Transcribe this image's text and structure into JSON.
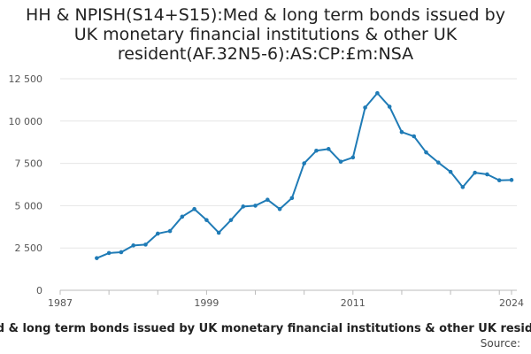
{
  "chart_data": {
    "type": "line",
    "title_lines": [
      "HH & NPISH(S14+S15):Med & long term bonds issued by",
      "UK monetary financial institutions & other UK",
      "resident(AF.32N5-6):AS:CP:£m:NSA"
    ],
    "xlabel": "Med & long term bonds issued by UK monetary financial institutions & other UK resident",
    "ylabel": "",
    "x_ticks": [
      "1987",
      "1999",
      "2011",
      "2024"
    ],
    "y_ticks": [
      "0",
      "2 500",
      "5 000",
      "7 500",
      "10 000",
      "12 500"
    ],
    "xlim": [
      1987,
      2024
    ],
    "ylim": [
      0,
      12500
    ],
    "grid": true,
    "color": "#1f7bb6",
    "x": [
      1990,
      1991,
      1992,
      1993,
      1994,
      1995,
      1996,
      1997,
      1998,
      1999,
      2000,
      2001,
      2002,
      2003,
      2004,
      2005,
      2006,
      2007,
      2008,
      2009,
      2010,
      2011,
      2012,
      2013,
      2014,
      2015,
      2016,
      2017,
      2018,
      2019,
      2020,
      2021,
      2022,
      2023,
      2024
    ],
    "values": [
      1900,
      2200,
      2250,
      2650,
      2700,
      3350,
      3500,
      4350,
      4800,
      4150,
      3400,
      4150,
      4950,
      5000,
      5350,
      4800,
      5450,
      7500,
      8250,
      8350,
      7600,
      7850,
      10800,
      11650,
      10850,
      9350,
      9100,
      8150,
      7550,
      7000,
      6100,
      6950,
      6850,
      6500,
      6520
    ]
  },
  "source_label": "Source:"
}
